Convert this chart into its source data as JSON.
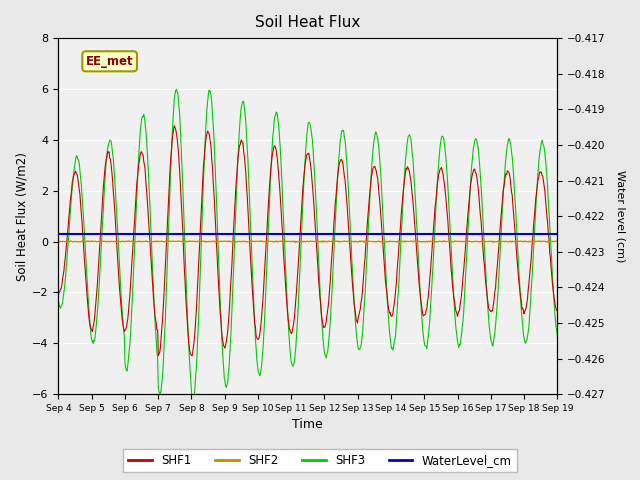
{
  "title": "Soil Heat Flux",
  "ylabel_left": "Soil Heat Flux (W/m2)",
  "ylabel_right": "Water level (cm)",
  "xlabel": "Time",
  "annotation": "EE_met",
  "ylim_left": [
    -6,
    8
  ],
  "ylim_right": [
    -0.427,
    -0.417
  ],
  "background_color": "#e8e8e8",
  "plot_bg_color": "#f0f0f0",
  "grid_color": "white",
  "shf1_color": "#cc0000",
  "shf2_color": "#cc8800",
  "shf3_color": "#00cc00",
  "waterlevel_color": "#0000cc",
  "legend_labels": [
    "SHF1",
    "SHF2",
    "SHF3",
    "WaterLevel_cm"
  ],
  "x_tick_labels": [
    "Sep 4",
    "Sep 5",
    "Sep 6",
    "Sep 7",
    "Sep 8",
    "Sep 9",
    "Sep 10",
    "Sep 11",
    "Sep 12",
    "Sep 13",
    "Sep 14",
    "Sep 15",
    "Sep 16",
    "Sep 17",
    "Sep 18",
    "Sep 19"
  ],
  "num_days": 15,
  "samples_per_day": 48,
  "right_yticks": [
    -0.427,
    -0.426,
    -0.425,
    -0.424,
    -0.423,
    -0.422,
    -0.421,
    -0.42,
    -0.419,
    -0.418,
    -0.417
  ],
  "left_yticks": [
    -6,
    -4,
    -2,
    0,
    2,
    4,
    6,
    8
  ],
  "waterlevel_value": -0.4225
}
